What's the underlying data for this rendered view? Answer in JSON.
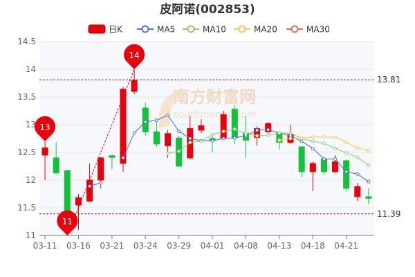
{
  "chart_data": {
    "type": "candlestick",
    "title": "皮阿诺(002853)",
    "legend": {
      "position": "top-center",
      "items": [
        {
          "label": "日K",
          "color": "#e8000b"
        },
        {
          "label": "MA5",
          "color": "#5470c6"
        },
        {
          "label": "MA10",
          "color": "#91cc75"
        },
        {
          "label": "MA20",
          "color": "#fac858"
        },
        {
          "label": "MA30",
          "color": "#ee6666"
        }
      ]
    },
    "up_color": "#e8000b",
    "down_color": "#13c23a",
    "grid": true,
    "ylim": [
      11,
      14.5
    ],
    "yticks": [
      "11",
      "11.5",
      "12",
      "12.5",
      "13",
      "13.5",
      "14",
      "14.5"
    ],
    "xticks": [
      "03-11",
      "03-16",
      "03-21",
      "03-24",
      "03-29",
      "04-01",
      "04-08",
      "04-13",
      "04-18",
      "04-21"
    ],
    "candles": [
      {
        "open": 12.45,
        "close": 12.58,
        "low": 12.0,
        "high": 12.7
      },
      {
        "open": 12.4,
        "close": 12.13,
        "low": 12.1,
        "high": 12.68
      },
      {
        "open": 12.17,
        "close": 11.3,
        "low": 11.0,
        "high": 12.17
      },
      {
        "open": 11.55,
        "close": 11.68,
        "low": 11.1,
        "high": 11.75
      },
      {
        "open": 11.62,
        "close": 12.0,
        "low": 11.6,
        "high": 12.3
      },
      {
        "open": 12.0,
        "close": 12.4,
        "low": 11.85,
        "high": 12.42
      },
      {
        "open": 12.44,
        "close": 12.41,
        "low": 12.2,
        "high": 12.46
      },
      {
        "open": 12.3,
        "close": 13.64,
        "low": 12.15,
        "high": 13.68
      },
      {
        "open": 13.6,
        "close": 13.8,
        "low": 13.55,
        "high": 14.0
      },
      {
        "open": 13.3,
        "close": 12.87,
        "low": 12.8,
        "high": 13.4
      },
      {
        "open": 12.87,
        "close": 12.65,
        "low": 12.6,
        "high": 13.1
      },
      {
        "open": 12.62,
        "close": 12.84,
        "low": 12.4,
        "high": 12.9
      },
      {
        "open": 12.76,
        "close": 12.25,
        "low": 12.25,
        "high": 12.8
      },
      {
        "open": 12.4,
        "close": 12.93,
        "low": 12.38,
        "high": 13.15
      },
      {
        "open": 12.9,
        "close": 12.98,
        "low": 12.85,
        "high": 13.1
      },
      {
        "open": 12.75,
        "close": 12.72,
        "low": 12.5,
        "high": 12.8
      },
      {
        "open": 12.75,
        "close": 13.18,
        "low": 12.72,
        "high": 13.25
      },
      {
        "open": 13.28,
        "close": 12.77,
        "low": 12.65,
        "high": 13.35
      },
      {
        "open": 12.85,
        "close": 12.72,
        "low": 12.4,
        "high": 13.15
      },
      {
        "open": 12.77,
        "close": 12.93,
        "low": 12.62,
        "high": 12.97
      },
      {
        "open": 12.87,
        "close": 13.02,
        "low": 12.8,
        "high": 13.05
      },
      {
        "open": 12.85,
        "close": 12.68,
        "low": 12.55,
        "high": 12.88
      },
      {
        "open": 12.68,
        "close": 12.82,
        "low": 12.65,
        "high": 13.0
      },
      {
        "open": 12.6,
        "close": 12.15,
        "low": 12.05,
        "high": 12.6
      },
      {
        "open": 12.15,
        "close": 12.3,
        "low": 11.8,
        "high": 12.33
      },
      {
        "open": 12.38,
        "close": 12.15,
        "low": 12.1,
        "high": 12.4
      },
      {
        "open": 12.15,
        "close": 12.33,
        "low": 12.12,
        "high": 12.45
      },
      {
        "open": 12.35,
        "close": 11.85,
        "low": 11.8,
        "high": 12.37
      },
      {
        "open": 11.7,
        "close": 11.88,
        "low": 11.62,
        "high": 11.95
      },
      {
        "open": 11.7,
        "close": 11.67,
        "low": 11.57,
        "high": 11.85
      }
    ],
    "ma5": [
      null,
      null,
      null,
      null,
      11.89,
      11.95,
      null,
      12.4,
      12.85,
      13.05,
      13.08,
      13.17,
      12.88,
      12.75,
      12.71,
      12.71,
      12.75,
      12.76,
      12.8,
      12.9,
      12.91,
      12.85,
      12.8,
      12.7,
      12.57,
      12.38,
      12.38,
      12.15,
      12.11,
      11.97
    ],
    "ma10": [
      null,
      null,
      null,
      null,
      null,
      null,
      null,
      null,
      null,
      null,
      null,
      12.48,
      12.52,
      12.68,
      12.7,
      12.82,
      12.88,
      12.92,
      12.84,
      12.8,
      12.81,
      12.85,
      12.85,
      12.75,
      12.7,
      12.66,
      12.57,
      12.49,
      12.41,
      12.27
    ],
    "ma20": [
      null,
      null,
      null,
      null,
      null,
      null,
      null,
      null,
      null,
      null,
      null,
      null,
      null,
      null,
      null,
      null,
      null,
      null,
      null,
      null,
      null,
      12.72,
      12.75,
      12.76,
      12.78,
      12.78,
      12.77,
      12.68,
      12.58,
      12.53
    ],
    "reference_lines": [
      {
        "value": 13.81,
        "label": "13.81"
      },
      {
        "value": 11.39,
        "label": "11.39"
      }
    ],
    "markers": [
      {
        "label": "13",
        "index": 0,
        "value": 12.7
      },
      {
        "label": "11",
        "index": 2,
        "value": 11.0
      },
      {
        "label": "14",
        "index": 8,
        "value": 14.0
      }
    ],
    "dashed_trendlines": [
      {
        "from_index": 2,
        "from_value": 11.0,
        "to_index": 8,
        "to_value": 14.0
      }
    ]
  },
  "watermark": {
    "main": "南方财富网",
    "sub": "southmoney.com"
  }
}
